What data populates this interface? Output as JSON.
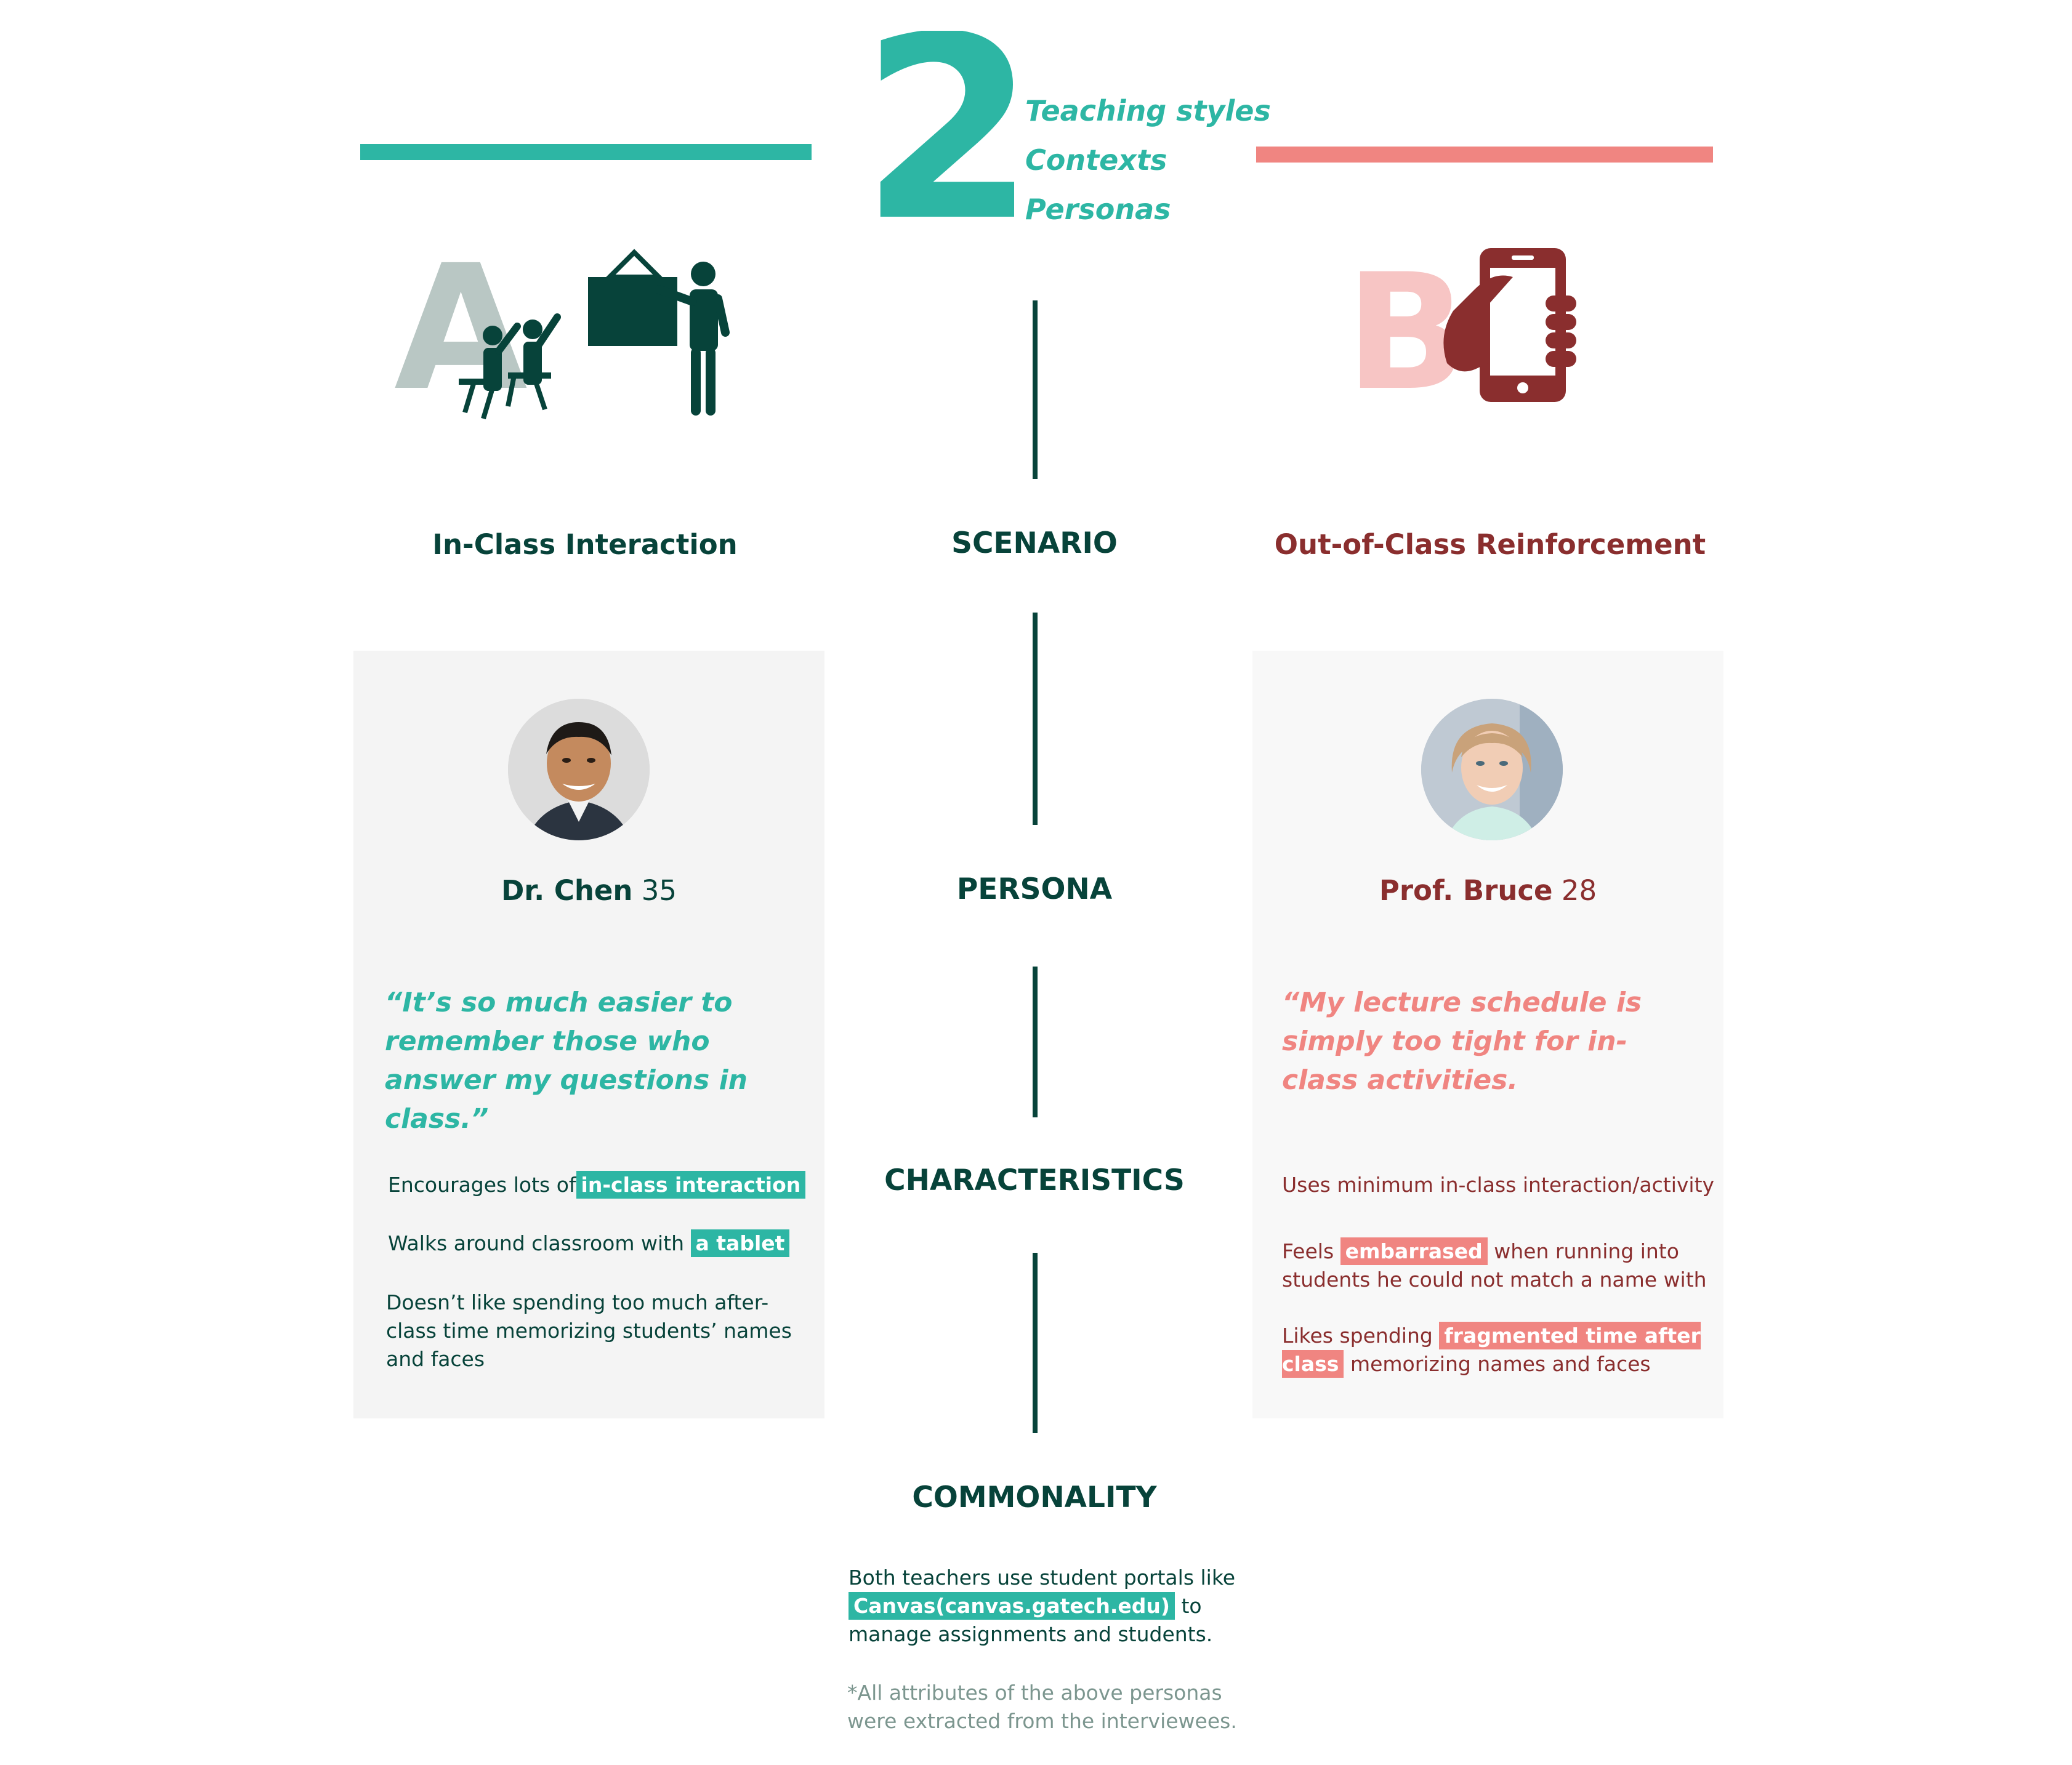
{
  "header": {
    "number": "2",
    "items": [
      "Teaching styles",
      "Contexts",
      "Personas"
    ]
  },
  "colors": {
    "teal": "#2db6a4",
    "dark_green": "#07433a",
    "coral": "#f08581",
    "maroon": "#8a2e2e",
    "pink_light": "#f7c5c4",
    "card_bg": "#f4f4f4"
  },
  "icons": {
    "a": "classroom-teacher-icon",
    "b": "hand-holding-phone-icon"
  },
  "labels": {
    "scenario": "SCENARIO",
    "persona": "PERSONA",
    "characteristics": "CHARACTERISTICS",
    "commonality": "COMMONALITY"
  },
  "scenario_a": {
    "letter": "A",
    "title": "In-Class Interaction"
  },
  "scenario_b": {
    "letter": "B",
    "title": "Out-of-Class Reinforcement"
  },
  "persona_a": {
    "name": "Dr. Chen",
    "age": "35",
    "quote": "“It’s so much easier to remember those who answer my questions in class.”",
    "characteristics": [
      {
        "before": "Encourages lots of",
        "highlight": "in-class interaction",
        "after": ""
      },
      {
        "before": "Walks around classroom with",
        "highlight": "a tablet",
        "after": ""
      },
      {
        "before": "Doesn’t like spending too much after-class time memorizing students’ names and faces",
        "highlight": "",
        "after": ""
      }
    ]
  },
  "persona_b": {
    "name": "Prof. Bruce",
    "age": "28",
    "quote": "“My lecture schedule is simply too tight for in-class activities.",
    "characteristics": [
      {
        "before": "Uses minimum in-class interaction/activity",
        "highlight": "",
        "after": ""
      },
      {
        "before": "Feels",
        "highlight": "embarrased",
        "after": "when running into students he could not match a name with"
      },
      {
        "before": "Likes spending",
        "highlight": "fragmented time after class",
        "after": "memorizing names and faces"
      }
    ]
  },
  "commonality": {
    "before": "Both teachers use student portals like",
    "highlight": "Canvas(canvas.gatech.edu)",
    "after": "to manage assignments and students.",
    "footnote": "*All attributes of the above personas were extracted from the interviewees."
  }
}
